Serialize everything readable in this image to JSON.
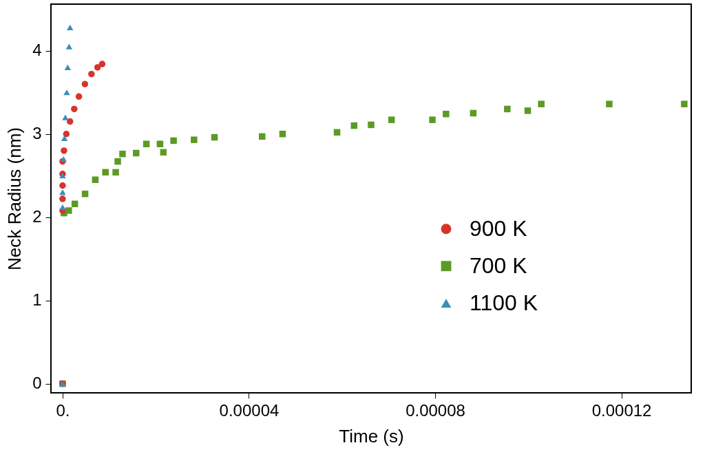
{
  "chart_data": {
    "type": "scatter",
    "xlabel": "Time (s)",
    "ylabel": "Neck Radius (nm)",
    "xlim": [
      -2.5e-06,
      0.000135
    ],
    "ylim": [
      -0.11,
      4.56
    ],
    "xticks": [
      {
        "value": 0,
        "label": "0."
      },
      {
        "value": 4e-05,
        "label": "0.00004"
      },
      {
        "value": 8e-05,
        "label": "0.00008"
      },
      {
        "value": 0.00012,
        "label": "0.00012"
      }
    ],
    "yticks": [
      0,
      1,
      2,
      3,
      4
    ],
    "grid": false,
    "legend": "right",
    "series": [
      {
        "name": "900 K",
        "color": "#d8342a",
        "marker": "circle",
        "x": [
          0,
          0,
          0,
          0,
          0,
          0,
          3e-07,
          8e-07,
          1.6e-06,
          2.5e-06,
          3.5e-06,
          4.8e-06,
          6.2e-06,
          7.5e-06,
          8.5e-06
        ],
        "values": [
          0,
          2.08,
          2.22,
          2.38,
          2.52,
          2.67,
          2.8,
          3.0,
          3.15,
          3.3,
          3.45,
          3.6,
          3.72,
          3.8,
          3.84
        ]
      },
      {
        "name": "700 K",
        "color": "#5c9a24",
        "marker": "square",
        "x": [
          0,
          2.9e-07,
          1.32e-06,
          2.63e-06,
          4.83e-06,
          7.02e-06,
          9.21e-06,
          1.141e-05,
          1.185e-05,
          1.287e-05,
          1.58e-05,
          1.799e-05,
          2.092e-05,
          2.165e-05,
          2.384e-05,
          2.823e-05,
          3.262e-05,
          4.285e-05,
          4.724e-05,
          5.894e-05,
          6.26e-05,
          6.625e-05,
          7.064e-05,
          7.941e-05,
          8.234e-05,
          8.819e-05,
          9.55e-05,
          9.989e-05,
          0.0001028,
          0.0001174,
          0.0001335
        ],
        "values": [
          0,
          2.05,
          2.08,
          2.16,
          2.28,
          2.45,
          2.54,
          2.54,
          2.67,
          2.76,
          2.77,
          2.88,
          2.88,
          2.78,
          2.92,
          2.93,
          2.96,
          2.97,
          3.0,
          3.02,
          3.1,
          3.11,
          3.17,
          3.17,
          3.24,
          3.25,
          3.3,
          3.28,
          3.36,
          3.36,
          3.36
        ]
      },
      {
        "name": "1100 K",
        "color": "#3c8fba",
        "marker": "triangle",
        "x": [
          0,
          0,
          0,
          0,
          2e-07,
          4e-07,
          6e-07,
          9e-07,
          1.1e-06,
          1.4e-06,
          1.6e-06
        ],
        "values": [
          0,
          2.12,
          2.3,
          2.5,
          2.7,
          2.95,
          3.2,
          3.5,
          3.8,
          4.05,
          4.28
        ]
      }
    ]
  }
}
